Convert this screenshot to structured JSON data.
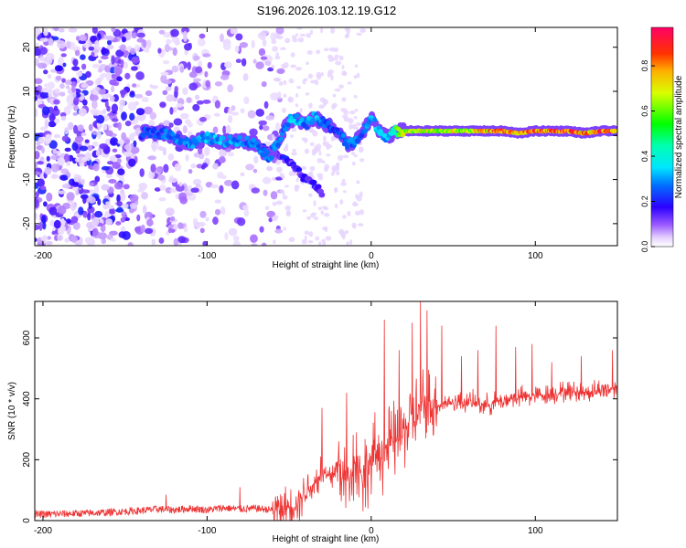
{
  "figure": {
    "title": "S196.2026.103.12.19.G12"
  },
  "chart_data": [
    {
      "type": "heatmap",
      "name": "spectrogram",
      "xlabel": "Height of straight line (km)",
      "ylabel": "Frequency (Hz)",
      "xlim": [
        -205,
        150
      ],
      "ylim": [
        -25,
        24.5
      ],
      "xticks": [
        -200,
        -100,
        0,
        100
      ],
      "xtick_labels": [
        "-200",
        "-100",
        "0",
        "100"
      ],
      "yticks": [
        -20,
        -10,
        0,
        10,
        20
      ],
      "ytick_labels": [
        "-20",
        "-10",
        "0",
        "10",
        "20"
      ],
      "colorbar": {
        "label": "Normalized spectral amplitude",
        "range": [
          0,
          0.97
        ],
        "ticks": [
          0,
          0.2,
          0.4,
          0.6,
          0.8
        ],
        "tick_labels": [
          "0.0",
          "0.2",
          "0.4",
          "0.6",
          "0.8"
        ]
      },
      "ridge": {
        "description": "main spectral line frequency (Hz) vs height (km)",
        "x": [
          -140,
          -125,
          -110,
          -100,
          -90,
          -80,
          -70,
          -62,
          -55,
          -50,
          -45,
          -40,
          -35,
          -30,
          -25,
          -20,
          -15,
          -10,
          -5,
          0,
          5,
          10,
          15,
          20,
          30,
          40,
          50,
          60,
          70,
          80,
          90,
          100,
          110,
          120,
          130,
          140,
          150
        ],
        "y": [
          0.5,
          0.5,
          -2.0,
          -0.5,
          -1.5,
          -1.0,
          -2.0,
          -5.0,
          0.0,
          3.5,
          3.5,
          2.5,
          4.0,
          3.0,
          2.0,
          1.0,
          -2.0,
          -1.5,
          0.5,
          4.0,
          1.0,
          -0.5,
          1.0,
          1.0,
          1.0,
          1.0,
          1.0,
          1.0,
          1.0,
          1.0,
          0.5,
          1.0,
          1.0,
          1.0,
          0.5,
          1.0,
          1.0
        ],
        "peak_amplitude": [
          0.25,
          0.3,
          0.3,
          0.35,
          0.35,
          0.3,
          0.3,
          0.3,
          0.3,
          0.35,
          0.35,
          0.3,
          0.35,
          0.3,
          0.25,
          0.25,
          0.3,
          0.3,
          0.3,
          0.35,
          0.35,
          0.35,
          0.55,
          0.7,
          0.7,
          0.7,
          0.75,
          0.7,
          0.85,
          0.9,
          0.85,
          0.9,
          0.9,
          0.95,
          0.85,
          0.95,
          0.95
        ]
      },
      "descending_branch": {
        "x": [
          -70,
          -60,
          -50,
          -45,
          -40,
          -35,
          -30
        ],
        "y": [
          -2,
          -4,
          -6,
          -8,
          -10,
          -11,
          -13
        ]
      }
    },
    {
      "type": "line",
      "name": "snr",
      "xlabel": "Height of straight line (km)",
      "ylabel": "SNR (10 * v/v)",
      "xlim": [
        -205,
        150
      ],
      "ylim": [
        0,
        720
      ],
      "xticks": [
        -200,
        -100,
        0,
        100
      ],
      "xtick_labels": [
        "-200",
        "-100",
        "0",
        "100"
      ],
      "yticks": [
        0,
        200,
        400,
        600
      ],
      "ytick_labels": [
        "0",
        "200",
        "400",
        "600"
      ],
      "color": "#ee3333",
      "series": [
        {
          "name": "SNR",
          "x": [
            -205,
            -190,
            -175,
            -160,
            -150,
            -140,
            -130,
            -120,
            -110,
            -100,
            -90,
            -80,
            -70,
            -60,
            -50,
            -45,
            -40,
            -35,
            -30,
            -25,
            -20,
            -15,
            -10,
            -5,
            0,
            5,
            10,
            15,
            20,
            25,
            30,
            35,
            40,
            50,
            60,
            70,
            80,
            90,
            100,
            110,
            120,
            130,
            140,
            150
          ],
          "y": [
            20,
            22,
            24,
            27,
            30,
            33,
            38,
            35,
            40,
            35,
            42,
            38,
            40,
            35,
            45,
            60,
            100,
            120,
            160,
            140,
            180,
            120,
            200,
            140,
            190,
            230,
            240,
            260,
            300,
            330,
            360,
            380,
            380,
            390,
            390,
            380,
            395,
            405,
            410,
            415,
            425,
            420,
            430,
            435
          ],
          "spikes": [
            {
              "x": -125,
              "y": 85
            },
            {
              "x": -80,
              "y": 110
            },
            {
              "x": -30,
              "y": 370
            },
            {
              "x": -15,
              "y": 420
            },
            {
              "x": 8,
              "y": 660
            },
            {
              "x": 17,
              "y": 560
            },
            {
              "x": 25,
              "y": 650
            },
            {
              "x": 30,
              "y": 720
            },
            {
              "x": 34,
              "y": 690
            },
            {
              "x": 43,
              "y": 640
            },
            {
              "x": 55,
              "y": 540
            },
            {
              "x": 65,
              "y": 560
            },
            {
              "x": 76,
              "y": 640
            },
            {
              "x": 88,
              "y": 570
            },
            {
              "x": 98,
              "y": 580
            },
            {
              "x": 110,
              "y": 520
            },
            {
              "x": 128,
              "y": 540
            },
            {
              "x": 147,
              "y": 560
            }
          ]
        }
      ]
    }
  ]
}
